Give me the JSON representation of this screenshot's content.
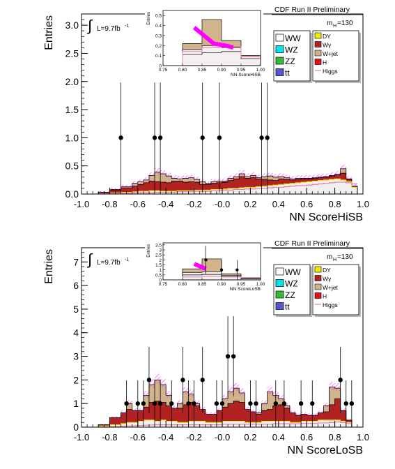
{
  "colors": {
    "ww": "#ffffff",
    "wz": "#00e5ee",
    "zz": "#33bb33",
    "tt": "#5555cc",
    "dy": "#f2ea00",
    "wgamma": "#b22222",
    "wjet": "#d2b48c",
    "h": "#dd1111",
    "higgs_line": "#e87ab0",
    "uncertainty": "#ff00ff",
    "data": "#000000"
  },
  "chart_data": [
    {
      "type": "bar",
      "panel": "top",
      "header": "CDF Run II Preliminary",
      "mass_label": "m",
      "mass_sub": "H",
      "mass_value": "=130",
      "lumi": "L=9.7fb",
      "lumi_sup": "-1",
      "ylabel": "Entries",
      "xlabel": "NN ScoreHiSB",
      "xlim": [
        -1.0,
        1.0
      ],
      "ylim": [
        0,
        3.2
      ],
      "xticks": [
        "-1.0",
        "-0.8",
        "-0.6",
        "-0.4",
        "-0.2",
        "-0.0",
        "0.2",
        "0.4",
        "0.6",
        "0.8",
        "1.0"
      ],
      "yticks": [
        "0.0",
        "0.5",
        "1.0",
        "1.5",
        "2.0",
        "2.5",
        "3.0"
      ],
      "legend_left": [
        "WW",
        "WZ",
        "ZZ",
        "tt"
      ],
      "legend_right": [
        "DY",
        "Wγ",
        "W+jet",
        "H",
        "Higgs"
      ],
      "bin_edges": [
        -0.88,
        -0.8,
        -0.72,
        -0.64,
        -0.6,
        -0.56,
        -0.52,
        -0.48,
        -0.44,
        -0.4,
        -0.36,
        -0.32,
        -0.28,
        -0.24,
        -0.2,
        -0.16,
        -0.12,
        -0.08,
        -0.04,
        0.0,
        0.04,
        0.08,
        0.12,
        0.16,
        0.2,
        0.24,
        0.28,
        0.32,
        0.36,
        0.4,
        0.44,
        0.48,
        0.52,
        0.56,
        0.6,
        0.64,
        0.68,
        0.72,
        0.76,
        0.8,
        0.84,
        0.88,
        0.92,
        0.96
      ],
      "stack": {
        "other": [
          0.01,
          0.02,
          0.03,
          0.04,
          0.05,
          0.05,
          0.06,
          0.06,
          0.05,
          0.05,
          0.05,
          0.06,
          0.06,
          0.06,
          0.07,
          0.07,
          0.07,
          0.08,
          0.08,
          0.09,
          0.1,
          0.1,
          0.11,
          0.12,
          0.12,
          0.13,
          0.14,
          0.15,
          0.16,
          0.17,
          0.18,
          0.19,
          0.2,
          0.21,
          0.22,
          0.23,
          0.24,
          0.25,
          0.26,
          0.27,
          0.25,
          0.22,
          0.12
        ],
        "wgamma": [
          0.02,
          0.05,
          0.08,
          0.1,
          0.12,
          0.15,
          0.17,
          0.16,
          0.16,
          0.15,
          0.18,
          0.17,
          0.15,
          0.16,
          0.14,
          0.1,
          0.1,
          0.11,
          0.12,
          0.12,
          0.14,
          0.17,
          0.2,
          0.16,
          0.17,
          0.14,
          0.12,
          0.1,
          0.08,
          0.1,
          0.08,
          0.06,
          0.06,
          0.06,
          0.05,
          0.05,
          0.05,
          0.05,
          0.06,
          0.07,
          0.12,
          0.04,
          0.02
        ],
        "wjet": [
          0.0,
          0.01,
          0.02,
          0.05,
          0.05,
          0.05,
          0.1,
          0.17,
          0.15,
          0.12,
          0.05,
          0.04,
          0.07,
          0.07,
          0.05,
          0.05,
          0.02,
          0.03,
          0.03,
          0.02,
          0.04,
          0.04,
          0.05,
          0.03,
          0.04,
          0.02,
          0.05,
          0.07,
          0.06,
          0.04,
          0.03,
          0.02,
          0.02,
          0.01,
          0.01,
          0.01,
          0.01,
          0.01,
          0.01,
          0.01,
          0.08,
          0.01,
          0.0
        ]
      },
      "higgs": [
        0.01,
        0.01,
        0.01,
        0.02,
        0.02,
        0.02,
        0.02,
        0.03,
        0.03,
        0.03,
        0.03,
        0.04,
        0.04,
        0.04,
        0.05,
        0.05,
        0.05,
        0.06,
        0.06,
        0.07,
        0.07,
        0.08,
        0.08,
        0.09,
        0.09,
        0.1,
        0.1,
        0.11,
        0.12,
        0.12,
        0.13,
        0.14,
        0.15,
        0.15,
        0.16,
        0.17,
        0.18,
        0.19,
        0.2,
        0.21,
        0.21,
        0.2,
        0.18
      ],
      "data_points": [
        {
          "x": -0.72,
          "y": 1,
          "err": 0.98
        },
        {
          "x": -0.48,
          "y": 1,
          "err": 0.98
        },
        {
          "x": -0.44,
          "y": 1,
          "err": 0.98
        },
        {
          "x": -0.14,
          "y": 1,
          "err": 0.98
        },
        {
          "x": -0.02,
          "y": 1,
          "err": 0.98
        },
        {
          "x": 0.28,
          "y": 1,
          "err": 0.98
        },
        {
          "x": 0.32,
          "y": 1,
          "err": 0.98
        }
      ],
      "inset": {
        "ylabel": "Entries",
        "xlabel": "NN ScoreHiSB",
        "xlim": [
          0.75,
          1.0
        ],
        "ylim": [
          0,
          0.55
        ],
        "xticks": [
          "0.75",
          "0.80",
          "0.85",
          "0.90",
          "0.95",
          "1.00"
        ],
        "yticks": [
          "0",
          "0.1",
          "0.2",
          "0.3",
          "0.4",
          "0.5"
        ],
        "bin_edges": [
          0.75,
          0.8,
          0.85,
          0.9,
          0.95,
          1.0
        ],
        "total": [
          0.0,
          0.22,
          0.46,
          0.25,
          0.1
        ],
        "wjet_top": [
          0.0,
          0.16,
          0.2,
          0.18,
          0.09
        ],
        "other_top": [
          0.0,
          0.11,
          0.13,
          0.14,
          0.07
        ],
        "higgs": [
          0.0,
          0.14,
          0.18,
          0.19,
          0.09
        ],
        "band": [
          {
            "x": 0.83,
            "y": 0.38
          },
          {
            "x": 0.88,
            "y": 0.22
          },
          {
            "x": 0.91,
            "y": 0.2
          },
          {
            "x": 0.93,
            "y": 0.18
          }
        ],
        "data_points": []
      }
    },
    {
      "type": "bar",
      "panel": "bottom",
      "header": "CDF Run II Preliminary",
      "mass_label": "m",
      "mass_sub": "H",
      "mass_value": "=130",
      "lumi": "L=9.7fb",
      "lumi_sup": "-1",
      "ylabel": "Entries",
      "xlabel": "NN ScoreLoSB",
      "xlim": [
        -1.0,
        1.0
      ],
      "ylim": [
        0,
        7.6
      ],
      "xticks": [
        "-1.0",
        "-0.8",
        "-0.6",
        "-0.4",
        "-0.2",
        "-0.0",
        "0.2",
        "0.4",
        "0.6",
        "0.8",
        "1.0"
      ],
      "yticks": [
        "0",
        "1",
        "2",
        "3",
        "4",
        "5",
        "6",
        "7"
      ],
      "legend_left": [
        "WW",
        "WZ",
        "ZZ",
        "tt"
      ],
      "legend_right": [
        "DY",
        "Wγ",
        "W+jet",
        "H",
        "Higgs"
      ],
      "bin_edges": [
        -0.88,
        -0.8,
        -0.72,
        -0.68,
        -0.64,
        -0.6,
        -0.56,
        -0.52,
        -0.48,
        -0.44,
        -0.4,
        -0.36,
        -0.32,
        -0.28,
        -0.24,
        -0.2,
        -0.16,
        -0.12,
        -0.08,
        -0.04,
        0.0,
        0.04,
        0.08,
        0.12,
        0.16,
        0.2,
        0.24,
        0.28,
        0.32,
        0.36,
        0.4,
        0.44,
        0.48,
        0.52,
        0.56,
        0.6,
        0.64,
        0.68,
        0.72,
        0.76,
        0.8,
        0.84,
        0.88,
        0.92
      ],
      "stack": {
        "other": [
          0.05,
          0.1,
          0.15,
          0.2,
          0.2,
          0.25,
          0.3,
          0.3,
          0.25,
          0.3,
          0.25,
          0.25,
          0.2,
          0.2,
          0.25,
          0.25,
          0.25,
          0.2,
          0.2,
          0.2,
          0.25,
          0.25,
          0.25,
          0.25,
          0.2,
          0.2,
          0.2,
          0.25,
          0.25,
          0.25,
          0.25,
          0.25,
          0.2,
          0.2,
          0.25,
          0.25,
          0.25,
          0.3,
          0.3,
          0.3,
          0.3,
          0.25,
          0.2
        ],
        "wgamma": [
          0.05,
          0.3,
          0.45,
          0.55,
          0.5,
          0.45,
          0.55,
          0.75,
          0.85,
          0.75,
          0.65,
          0.55,
          0.6,
          0.75,
          0.8,
          0.65,
          0.5,
          0.35,
          0.35,
          0.5,
          0.6,
          0.75,
          0.85,
          0.8,
          0.55,
          0.45,
          0.35,
          0.45,
          0.5,
          0.65,
          0.7,
          0.55,
          0.4,
          0.3,
          0.3,
          0.25,
          0.25,
          0.3,
          0.35,
          0.65,
          0.9,
          0.45,
          0.1
        ],
        "wjet": [
          0.0,
          0.0,
          0.0,
          0.25,
          0.0,
          0.0,
          0.5,
          0.75,
          0.9,
          0.75,
          0.45,
          0.0,
          0.2,
          0.55,
          0.35,
          0.1,
          0.0,
          0.0,
          0.0,
          0.0,
          0.35,
          0.5,
          0.55,
          0.4,
          0.0,
          0.0,
          0.05,
          0.3,
          0.75,
          0.45,
          0.25,
          0.1,
          0.0,
          0.0,
          0.0,
          0.0,
          0.0,
          0.0,
          0.25,
          0.75,
          0.45,
          0.0,
          0.0
        ]
      },
      "higgs": [
        0.0,
        0.02,
        0.04,
        0.05,
        0.06,
        0.07,
        0.08,
        0.09,
        0.1,
        0.1,
        0.1,
        0.1,
        0.1,
        0.1,
        0.1,
        0.1,
        0.1,
        0.1,
        0.1,
        0.1,
        0.12,
        0.12,
        0.12,
        0.12,
        0.12,
        0.12,
        0.12,
        0.12,
        0.12,
        0.14,
        0.14,
        0.14,
        0.14,
        0.14,
        0.16,
        0.16,
        0.16,
        0.18,
        0.18,
        0.2,
        0.22,
        0.2,
        0.15
      ],
      "data_points": [
        {
          "x": -0.68,
          "y": 1,
          "err": 0.98
        },
        {
          "x": -0.6,
          "y": 1,
          "err": 0.98
        },
        {
          "x": -0.56,
          "y": 1,
          "err": 0.98
        },
        {
          "x": -0.52,
          "y": 2,
          "err": 1.4
        },
        {
          "x": -0.48,
          "y": 1,
          "err": 0.98
        },
        {
          "x": -0.44,
          "y": 1,
          "err": 0.98
        },
        {
          "x": -0.36,
          "y": 1,
          "err": 0.98
        },
        {
          "x": -0.28,
          "y": 2,
          "err": 1.4
        },
        {
          "x": -0.24,
          "y": 1,
          "err": 0.98
        },
        {
          "x": -0.2,
          "y": 1,
          "err": 0.98
        },
        {
          "x": -0.14,
          "y": 2,
          "err": 1.4
        },
        {
          "x": -0.04,
          "y": 1,
          "err": 0.98
        },
        {
          "x": 0.0,
          "y": 1,
          "err": 0.98
        },
        {
          "x": 0.04,
          "y": 3,
          "err": 1.7
        },
        {
          "x": 0.08,
          "y": 3,
          "err": 1.7
        },
        {
          "x": 0.2,
          "y": 1,
          "err": 0.98
        },
        {
          "x": 0.24,
          "y": 1,
          "err": 0.98
        },
        {
          "x": 0.38,
          "y": 1,
          "err": 0.98
        },
        {
          "x": 0.44,
          "y": 1,
          "err": 0.98
        },
        {
          "x": 0.56,
          "y": 1,
          "err": 0.98
        },
        {
          "x": 0.64,
          "y": 1,
          "err": 0.98
        },
        {
          "x": 0.84,
          "y": 2,
          "err": 1.4
        },
        {
          "x": 0.88,
          "y": 1,
          "err": 0.98
        },
        {
          "x": 0.92,
          "y": 1,
          "err": 0.98
        }
      ],
      "inset": {
        "ylabel": "Entries",
        "xlabel": "NN ScoreLoSB",
        "xlim": [
          0.75,
          1.0
        ],
        "ylim": [
          0,
          3.7
        ],
        "xticks": [
          "0.75",
          "0.80",
          "0.85",
          "0.90",
          "0.95",
          "1.00"
        ],
        "yticks": [
          "0",
          "0.5",
          "1",
          "1.5",
          "2",
          "2.5",
          "3",
          "3.5"
        ],
        "bin_edges": [
          0.75,
          0.8,
          0.85,
          0.9,
          0.95,
          1.0
        ],
        "total": [
          0.0,
          1.1,
          2.1,
          0.6,
          0.2
        ],
        "wjet_top": [
          0.0,
          0.75,
          0.8,
          0.45,
          0.15
        ],
        "other_top": [
          0.0,
          0.5,
          0.55,
          0.35,
          0.1
        ],
        "higgs": [
          0.0,
          0.3,
          0.35,
          0.3,
          0.1
        ],
        "band": [
          {
            "x": 0.83,
            "y": 1.6
          },
          {
            "x": 0.86,
            "y": 1.1
          }
        ],
        "data_points": [
          {
            "x": 0.86,
            "y": 2,
            "err": 1.4
          },
          {
            "x": 0.9,
            "y": 1,
            "err": 0.98
          },
          {
            "x": 0.94,
            "y": 1,
            "err": 0.98
          }
        ]
      }
    }
  ]
}
